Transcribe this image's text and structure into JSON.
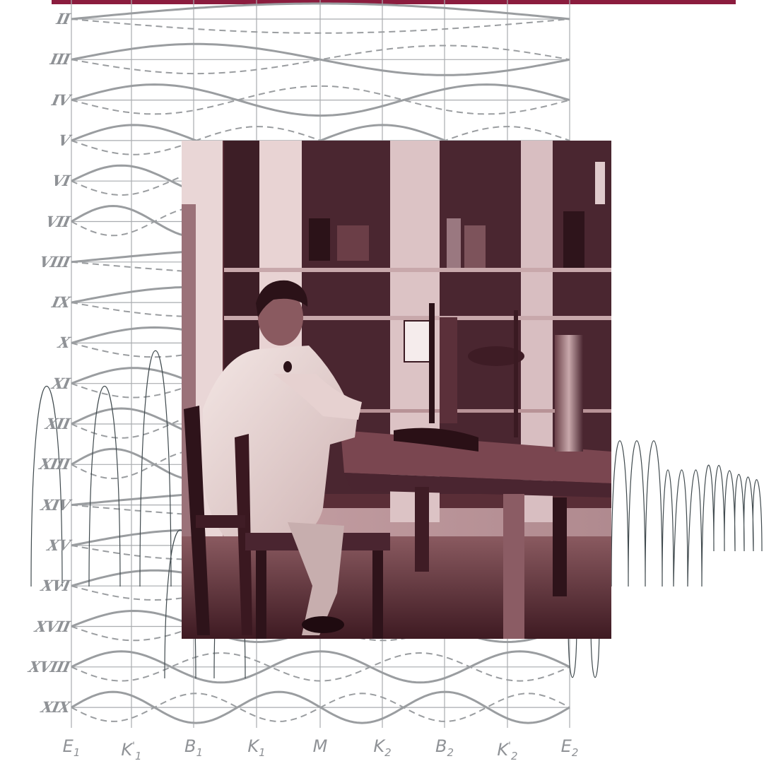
{
  "colors": {
    "accent_bar": "#8b1c3e",
    "diagram_line": "#9a9da0",
    "grid_line": "#a9acaf",
    "oscillation_line": "#404a4e",
    "photo_tint": "#7b3a46"
  },
  "diagram": {
    "row_labels": [
      "II",
      "III",
      "IV",
      "V",
      "VI",
      "VII",
      "VIII",
      "IX",
      "X",
      "XI",
      "XII",
      "XIII",
      "XIV",
      "XV",
      "XVI",
      "XVII",
      "XVIII",
      "XIX"
    ],
    "column_labels": [
      {
        "main": "E",
        "sub": "1",
        "prime": ""
      },
      {
        "main": "K",
        "sub": "1",
        "prime": "'"
      },
      {
        "main": "B",
        "sub": "1",
        "prime": ""
      },
      {
        "main": "K",
        "sub": "1",
        "prime": ""
      },
      {
        "main": "M",
        "sub": "",
        "prime": ""
      },
      {
        "main": "K",
        "sub": "2",
        "prime": ""
      },
      {
        "main": "B",
        "sub": "2",
        "prime": ""
      },
      {
        "main": "K",
        "sub": "2",
        "prime": "'"
      },
      {
        "main": "E",
        "sub": "2",
        "prime": ""
      }
    ]
  },
  "photo": {
    "subject": "scientist-in-lab-coat-at-laboratory-table",
    "tone": "sepia-maroon"
  }
}
